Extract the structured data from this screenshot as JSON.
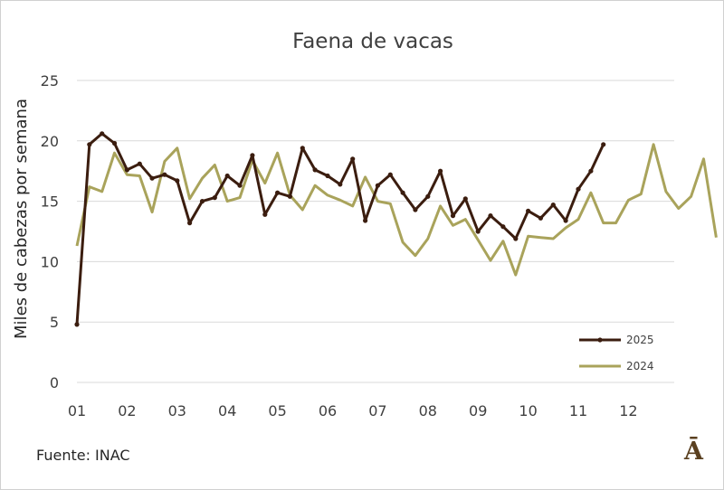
{
  "colors": {
    "y2025": "#3b1d0f",
    "y2024": "#a9a35b",
    "grid": "#d9d9d9",
    "text": "#404040"
  },
  "source": "Fuente: INAC",
  "logo": "Ā",
  "chart_data": {
    "type": "line",
    "title": "Faena de vacas",
    "xlabel": "",
    "ylabel": "Miles de cabezas por semana",
    "ylim": [
      0,
      25
    ],
    "yticks": [
      0,
      5,
      10,
      15,
      20,
      25
    ],
    "xlim": [
      1,
      12.75
    ],
    "xticks": [
      "01",
      "02",
      "03",
      "04",
      "05",
      "06",
      "07",
      "08",
      "09",
      "10",
      "11",
      "12"
    ],
    "grid": true,
    "legend_position": "bottom-right",
    "series": [
      {
        "name": "2025",
        "marker": true,
        "values": [
          4.8,
          19.7,
          20.6,
          19.8,
          17.6,
          18.1,
          16.9,
          17.2,
          16.7,
          13.2,
          15.0,
          15.3,
          17.1,
          16.3,
          18.8,
          13.9,
          15.7,
          15.4,
          19.4,
          17.6,
          17.1,
          16.4,
          18.5,
          13.4,
          16.3,
          17.2,
          15.7,
          14.3,
          15.4,
          17.5,
          13.8,
          15.2,
          12.5,
          13.8,
          12.9,
          11.9,
          14.2,
          13.6,
          14.7,
          13.4,
          16.0,
          17.5,
          19.7
        ]
      },
      {
        "name": "2024",
        "marker": false,
        "values": [
          11.3,
          16.2,
          15.8,
          19.0,
          17.2,
          17.1,
          14.1,
          18.3,
          19.4,
          15.2,
          16.9,
          18.0,
          15.0,
          15.3,
          18.4,
          16.5,
          19.0,
          15.5,
          14.3,
          16.3,
          15.5,
          15.1,
          14.6,
          17.0,
          15.0,
          14.8,
          11.6,
          10.5,
          11.9,
          14.6,
          13.0,
          13.5,
          11.8,
          10.1,
          11.7,
          8.9,
          12.1,
          12.0,
          11.9,
          12.8,
          13.5,
          15.7,
          13.2,
          13.2,
          15.1,
          15.6,
          19.7,
          15.8,
          14.4,
          15.4,
          18.5,
          12.0
        ]
      }
    ]
  }
}
